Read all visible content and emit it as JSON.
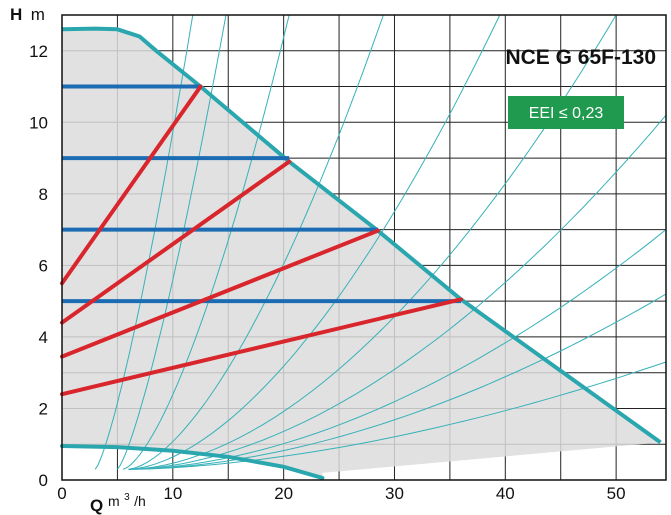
{
  "chart_data": {
    "type": "line",
    "title": "NCE G 65F-130",
    "badge": "EEI ≤ 0,23",
    "xlabel": "Q",
    "xunit": "m",
    "xunit_sup": "3",
    "xunit_tail": "/h",
    "ylabel": "H",
    "yunit": "m",
    "xlim": [
      0,
      54.5
    ],
    "ylim": [
      0,
      13
    ],
    "x_ticks": [
      0,
      10,
      20,
      30,
      40,
      50
    ],
    "y_ticks": [
      0,
      2,
      4,
      6,
      8,
      10,
      12
    ],
    "grid": true,
    "colors": {
      "envelope": "#2aa7ae",
      "constant_pressure": "#1c6cb4",
      "proportional_pressure": "#d8262c",
      "system_curves": "#36b1b8",
      "area_fill": "#dcdcdc",
      "badge": "#1f9a4f"
    },
    "envelope": [
      [
        0,
        12.6
      ],
      [
        3,
        12.62
      ],
      [
        5,
        12.6
      ],
      [
        7,
        12.4
      ],
      [
        8.5,
        12.0
      ],
      [
        12.5,
        11.0
      ],
      [
        20.5,
        8.9
      ],
      [
        28.5,
        6.97
      ],
      [
        36,
        5.05
      ],
      [
        54,
        1.05
      ]
    ],
    "min_curve": [
      [
        0,
        0.95
      ],
      [
        5,
        0.92
      ],
      [
        10,
        0.82
      ],
      [
        15,
        0.65
      ],
      [
        20,
        0.37
      ],
      [
        23.5,
        0.06
      ]
    ],
    "min_area_edge": [
      [
        23.5,
        0.2
      ],
      [
        54,
        1.05
      ]
    ],
    "constant_pressure": [
      {
        "h": 11.0,
        "qmax": 12.5
      },
      {
        "h": 9.0,
        "qmax": 20.5
      },
      {
        "h": 7.0,
        "qmax": 28.5
      },
      {
        "h": 5.0,
        "qmax": 36.0
      }
    ],
    "proportional_pressure": [
      {
        "h0": 5.5,
        "q1": 12.5,
        "h1": 11.0
      },
      {
        "h0": 4.4,
        "q1": 20.5,
        "h1": 8.9
      },
      {
        "h0": 3.45,
        "q1": 28.5,
        "h1": 6.97
      },
      {
        "h0": 2.4,
        "q1": 36.0,
        "h1": 5.05
      }
    ],
    "system_curves": [
      {
        "q0": 3.0,
        "h0": 0.3,
        "q1": 11.8,
        "h1": 13.0,
        "exp": 1.3
      },
      {
        "q0": 5.0,
        "h0": 0.3,
        "q1": 14.8,
        "h1": 13.0,
        "exp": 1.3
      },
      {
        "q0": 5.5,
        "h0": 0.3,
        "q1": 20.5,
        "h1": 13.0,
        "exp": 1.5
      },
      {
        "q0": 6.0,
        "h0": 0.3,
        "q1": 29.0,
        "h1": 13.0,
        "exp": 1.6
      },
      {
        "q0": 6.0,
        "h0": 0.3,
        "q1": 39.5,
        "h1": 13.0,
        "exp": 1.7
      },
      {
        "q0": 6.0,
        "h0": 0.3,
        "q1": 50.0,
        "h1": 13.0,
        "exp": 1.8
      },
      {
        "q0": 6.0,
        "h0": 0.3,
        "q1": 54.5,
        "h1": 10.2,
        "exp": 1.8
      },
      {
        "q0": 6.0,
        "h0": 0.3,
        "q1": 54.5,
        "h1": 7.0,
        "exp": 1.8
      },
      {
        "q0": 6.0,
        "h0": 0.3,
        "q1": 54.5,
        "h1": 5.2,
        "exp": 1.8
      },
      {
        "q0": 6.0,
        "h0": 0.3,
        "q1": 54.5,
        "h1": 3.3,
        "exp": 1.7
      }
    ]
  }
}
